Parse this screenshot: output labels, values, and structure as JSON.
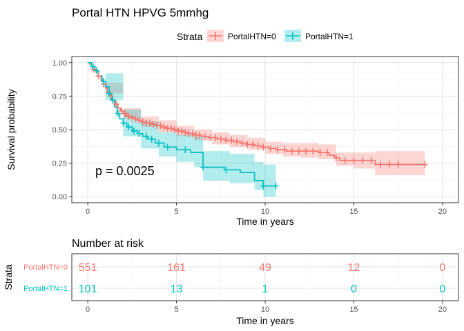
{
  "title": "Portal HTN HPVG 5mmhg",
  "legend": {
    "title": "Strata",
    "position": "top",
    "items": [
      {
        "label": "PortalHTN=0",
        "color": "#F8766D"
      },
      {
        "label": "PortalHTN=1",
        "color": "#00BFC4"
      }
    ]
  },
  "pvalue_label": "p = 0.0025",
  "chart_data": [
    {
      "type": "line",
      "subtype": "kaplan-meier",
      "xlabel": "Time in years",
      "ylabel": "Survival probability",
      "xlim": [
        0,
        20
      ],
      "ylim": [
        0,
        1
      ],
      "xticks": [
        0,
        5,
        10,
        15,
        20
      ],
      "yticks": [
        "0.00",
        "0.25",
        "0.50",
        "0.75",
        "1.00"
      ],
      "grid": true,
      "series": [
        {
          "name": "PortalHTN=0",
          "color": "#F8766D",
          "steps": [
            [
              0,
              1.0
            ],
            [
              0.1,
              0.99
            ],
            [
              0.2,
              0.97
            ],
            [
              0.3,
              0.95
            ],
            [
              0.45,
              0.93
            ],
            [
              0.6,
              0.9
            ],
            [
              0.75,
              0.87
            ],
            [
              0.9,
              0.84
            ],
            [
              1.0,
              0.81
            ],
            [
              1.1,
              0.78
            ],
            [
              1.25,
              0.75
            ],
            [
              1.4,
              0.72
            ],
            [
              1.55,
              0.69
            ],
            [
              1.7,
              0.66
            ],
            [
              1.85,
              0.64
            ],
            [
              2.0,
              0.62
            ],
            [
              2.2,
              0.6
            ],
            [
              2.4,
              0.59
            ],
            [
              2.6,
              0.58
            ],
            [
              2.8,
              0.57
            ],
            [
              3.0,
              0.56
            ],
            [
              3.3,
              0.55
            ],
            [
              3.6,
              0.54
            ],
            [
              3.9,
              0.53
            ],
            [
              4.2,
              0.52
            ],
            [
              4.5,
              0.51
            ],
            [
              4.8,
              0.5
            ],
            [
              5.1,
              0.49
            ],
            [
              5.4,
              0.48
            ],
            [
              5.7,
              0.47
            ],
            [
              6.0,
              0.46
            ],
            [
              6.4,
              0.45
            ],
            [
              6.8,
              0.44
            ],
            [
              7.3,
              0.43
            ],
            [
              7.8,
              0.42
            ],
            [
              8.2,
              0.41
            ],
            [
              8.6,
              0.4
            ],
            [
              9.0,
              0.39
            ],
            [
              9.4,
              0.38
            ],
            [
              9.8,
              0.37
            ],
            [
              10.2,
              0.36
            ],
            [
              10.6,
              0.35
            ],
            [
              11.2,
              0.34
            ],
            [
              12.0,
              0.34
            ],
            [
              13.0,
              0.33
            ],
            [
              13.6,
              0.31
            ],
            [
              13.9,
              0.29
            ],
            [
              14.2,
              0.27
            ],
            [
              15.0,
              0.27
            ],
            [
              16.2,
              0.24
            ],
            [
              19.0,
              0.24
            ]
          ],
          "lower": [
            [
              0,
              1.0
            ],
            [
              1.0,
              0.77
            ],
            [
              2.0,
              0.58
            ],
            [
              3.0,
              0.52
            ],
            [
              4.0,
              0.48
            ],
            [
              5.0,
              0.45
            ],
            [
              6.0,
              0.42
            ],
            [
              7.0,
              0.39
            ],
            [
              8.0,
              0.37
            ],
            [
              9.0,
              0.35
            ],
            [
              10.0,
              0.32
            ],
            [
              11.0,
              0.3
            ],
            [
              12.0,
              0.29
            ],
            [
              13.0,
              0.28
            ],
            [
              14.0,
              0.23
            ],
            [
              15.0,
              0.21
            ],
            [
              16.2,
              0.16
            ],
            [
              19.0,
              0.16
            ]
          ],
          "upper": [
            [
              0,
              1.0
            ],
            [
              1.0,
              0.85
            ],
            [
              2.0,
              0.66
            ],
            [
              3.0,
              0.6
            ],
            [
              4.0,
              0.57
            ],
            [
              5.0,
              0.53
            ],
            [
              6.0,
              0.5
            ],
            [
              7.0,
              0.48
            ],
            [
              8.0,
              0.46
            ],
            [
              9.0,
              0.44
            ],
            [
              10.0,
              0.41
            ],
            [
              11.0,
              0.4
            ],
            [
              12.0,
              0.4
            ],
            [
              13.0,
              0.39
            ],
            [
              14.0,
              0.33
            ],
            [
              15.0,
              0.33
            ],
            [
              16.2,
              0.34
            ],
            [
              19.0,
              0.34
            ]
          ],
          "censor_x": [
            0.3,
            0.6,
            0.9,
            1.3,
            1.6,
            1.9,
            2.1,
            2.3,
            2.5,
            2.7,
            2.9,
            3.1,
            3.3,
            3.5,
            3.7,
            3.9,
            4.1,
            4.3,
            4.5,
            4.7,
            4.9,
            5.1,
            5.3,
            5.5,
            5.7,
            5.9,
            6.1,
            6.3,
            6.6,
            6.9,
            7.2,
            7.5,
            7.8,
            8.1,
            8.4,
            8.7,
            9.0,
            9.3,
            9.6,
            9.9,
            10.3,
            10.7,
            11.1,
            11.5,
            11.9,
            12.3,
            12.7,
            13.1,
            13.5,
            14.0,
            14.5,
            15.0,
            15.5,
            16.0,
            16.5,
            17.0,
            17.5,
            19.0
          ]
        },
        {
          "name": "PortalHTN=1",
          "color": "#00BFC4",
          "steps": [
            [
              0,
              1.0
            ],
            [
              0.2,
              0.97
            ],
            [
              0.4,
              0.94
            ],
            [
              0.6,
              0.9
            ],
            [
              0.8,
              0.86
            ],
            [
              1.0,
              0.82
            ],
            [
              1.2,
              0.77
            ],
            [
              1.35,
              0.72
            ],
            [
              1.5,
              0.67
            ],
            [
              1.65,
              0.62
            ],
            [
              1.8,
              0.58
            ],
            [
              2.0,
              0.55
            ],
            [
              2.2,
              0.52
            ],
            [
              2.5,
              0.49
            ],
            [
              2.8,
              0.47
            ],
            [
              3.1,
              0.45
            ],
            [
              3.4,
              0.43
            ],
            [
              3.8,
              0.4
            ],
            [
              4.3,
              0.37
            ],
            [
              5.0,
              0.35
            ],
            [
              5.8,
              0.33
            ],
            [
              6.5,
              0.22
            ],
            [
              7.7,
              0.2
            ],
            [
              8.6,
              0.18
            ],
            [
              9.4,
              0.12
            ],
            [
              9.9,
              0.08
            ],
            [
              10.6,
              0.08
            ]
          ],
          "lower": [
            [
              0,
              1.0
            ],
            [
              1.0,
              0.72
            ],
            [
              2.0,
              0.45
            ],
            [
              3.0,
              0.36
            ],
            [
              4.0,
              0.3
            ],
            [
              5.0,
              0.26
            ],
            [
              6.0,
              0.22
            ],
            [
              6.5,
              0.12
            ],
            [
              8.0,
              0.1
            ],
            [
              9.4,
              0.05
            ],
            [
              9.9,
              0.0
            ],
            [
              10.6,
              0.0
            ]
          ],
          "upper": [
            [
              0,
              1.0
            ],
            [
              1.0,
              0.92
            ],
            [
              2.0,
              0.65
            ],
            [
              3.0,
              0.56
            ],
            [
              4.0,
              0.48
            ],
            [
              5.0,
              0.46
            ],
            [
              6.0,
              0.45
            ],
            [
              6.5,
              0.34
            ],
            [
              8.0,
              0.32
            ],
            [
              9.4,
              0.26
            ],
            [
              9.9,
              0.24
            ],
            [
              10.6,
              0.24
            ]
          ],
          "censor_x": [
            0.3,
            0.5,
            0.9,
            1.2,
            1.4,
            1.7,
            2.0,
            2.3,
            2.6,
            2.9,
            3.3,
            3.6,
            4.0,
            4.5,
            5.5,
            6.5,
            7.8,
            9.9,
            10.6
          ]
        }
      ]
    },
    {
      "type": "table",
      "title": "Number at risk",
      "xlabel": "Time in years",
      "ylabel": "Strata",
      "xlim": [
        0,
        20
      ],
      "xticks": [
        0,
        5,
        10,
        15,
        20
      ],
      "times": [
        0,
        5,
        10,
        15,
        20
      ],
      "rows": [
        {
          "name": "PortalHTN=0",
          "color": "#F8766D",
          "values": [
            "551",
            "161",
            "49",
            "12",
            "0"
          ]
        },
        {
          "name": "PortalHTN=1",
          "color": "#00BFC4",
          "values": [
            "101",
            "13",
            "1",
            "0",
            "0"
          ]
        }
      ]
    }
  ]
}
